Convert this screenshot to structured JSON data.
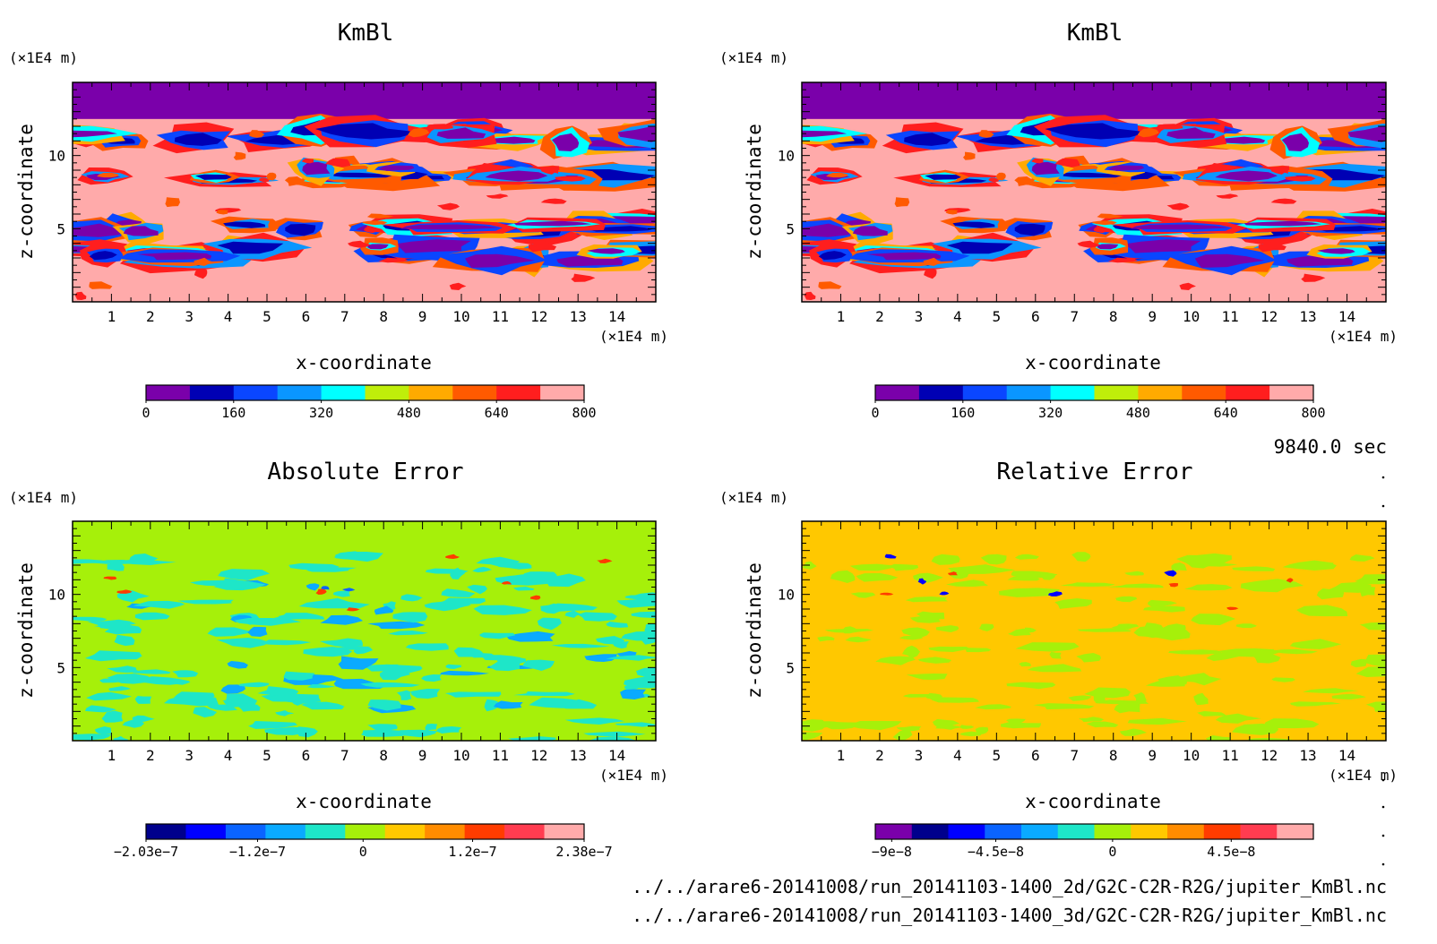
{
  "panels": [
    {
      "title": "KmBl",
      "xlabel": "x-coordinate",
      "ylabel": "z-coordinate",
      "xunit": "(×1E4 m)",
      "yunit": "(×1E4 m)",
      "background": "#ffaaaa",
      "cap": "#7a00aa",
      "pattern": "field",
      "colorbar": {
        "colors": [
          "#7a00aa",
          "#0000b4",
          "#0a46ff",
          "#0a96ff",
          "#00ffff",
          "#bfee0a",
          "#ffaa00",
          "#ff5a00",
          "#ff1e1e",
          "#ffaaaa"
        ],
        "labels": [
          "0",
          "160",
          "320",
          "480",
          "640",
          "800"
        ],
        "label_positions": [
          0,
          2,
          4,
          6,
          8,
          10
        ]
      }
    },
    {
      "title": "KmBl",
      "xlabel": "x-coordinate",
      "ylabel": "z-coordinate",
      "xunit": "(×1E4 m)",
      "yunit": "(×1E4 m)",
      "background": "#ffaaaa",
      "cap": "#7a00aa",
      "pattern": "field",
      "colorbar": {
        "colors": [
          "#7a00aa",
          "#0000b4",
          "#0a46ff",
          "#0a96ff",
          "#00ffff",
          "#bfee0a",
          "#ffaa00",
          "#ff5a00",
          "#ff1e1e",
          "#ffaaaa"
        ],
        "labels": [
          "0",
          "160",
          "320",
          "480",
          "640",
          "800"
        ],
        "label_positions": [
          0,
          2,
          4,
          6,
          8,
          10
        ]
      }
    },
    {
      "title": "Absolute Error",
      "xlabel": "x-coordinate",
      "ylabel": "z-coordinate",
      "xunit": "(×1E4 m)",
      "yunit": "(×1E4 m)",
      "background": "#a6f00a",
      "cap": "#a6f00a",
      "pattern": "abs",
      "colorbar": {
        "colors": [
          "#00008c",
          "#0000ff",
          "#0a64ff",
          "#0aaaff",
          "#1ee6c8",
          "#a6f00a",
          "#ffc800",
          "#ff8c00",
          "#ff3c00",
          "#ff3c50",
          "#ffaaaa"
        ],
        "labels": [
          "−2.03e−7",
          "−1.2e−7",
          "0",
          "1.2e−7",
          "2.38e−7"
        ],
        "label_positions": [
          0,
          2.8,
          5.45,
          8.2,
          11
        ]
      }
    },
    {
      "title": "Relative Error",
      "xlabel": "x-coordinate",
      "ylabel": "z-coordinate",
      "xunit": "(×1E4 m)",
      "yunit": "(×1E4 m)",
      "background": "#ffc800",
      "cap": "#ffc800",
      "pattern": "rel",
      "colorbar": {
        "colors": [
          "#7a00aa",
          "#00008c",
          "#0000ff",
          "#0a64ff",
          "#0aaaff",
          "#1ee6c8",
          "#a6f00a",
          "#ffc800",
          "#ff8c00",
          "#ff3c00",
          "#ff3c50",
          "#ffaaaa"
        ],
        "labels": [
          "−9e−8",
          "−4.5e−8",
          "0",
          "4.5e−8"
        ],
        "label_positions": [
          0.45,
          3.3,
          6.5,
          9.75
        ]
      }
    }
  ],
  "time_label": "9840.0 sec",
  "files": [
    "../../arare6-20141008/run_20141103-1400_2d/G2C-C2R-R2G/jupiter_KmBl.nc",
    "../../arare6-20141008/run_20141103-1400_3d/G2C-C2R-R2G/jupiter_KmBl.nc"
  ],
  "chart_data": [
    {
      "type": "heatmap",
      "title": "KmBl",
      "xlabel": "x-coordinate",
      "ylabel": "z-coordinate",
      "xunit": "(×1E4 m)",
      "yunit": "(×1E4 m)",
      "xlim": [
        0,
        15
      ],
      "ylim": [
        0,
        15
      ],
      "xticks": [
        1,
        2,
        3,
        4,
        5,
        6,
        7,
        8,
        9,
        10,
        11,
        12,
        13,
        14
      ],
      "yticks": [
        5,
        10
      ],
      "colorbar_labels": [
        "0",
        "160",
        "320",
        "480",
        "640",
        "800"
      ],
      "clim": [
        0,
        800
      ],
      "field_top": 12.5
    },
    {
      "type": "heatmap",
      "title": "KmBl",
      "xlabel": "x-coordinate",
      "ylabel": "z-coordinate",
      "xunit": "(×1E4 m)",
      "yunit": "(×1E4 m)",
      "xlim": [
        0,
        15
      ],
      "ylim": [
        0,
        15
      ],
      "xticks": [
        1,
        2,
        3,
        4,
        5,
        6,
        7,
        8,
        9,
        10,
        11,
        12,
        13,
        14
      ],
      "yticks": [
        5,
        10
      ],
      "colorbar_labels": [
        "0",
        "160",
        "320",
        "480",
        "640",
        "800"
      ],
      "clim": [
        0,
        800
      ],
      "field_top": 12.5
    },
    {
      "type": "heatmap",
      "title": "Absolute Error",
      "xlabel": "x-coordinate",
      "ylabel": "z-coordinate",
      "xunit": "(×1E4 m)",
      "yunit": "(×1E4 m)",
      "xlim": [
        0,
        15
      ],
      "ylim": [
        0,
        15
      ],
      "xticks": [
        1,
        2,
        3,
        4,
        5,
        6,
        7,
        8,
        9,
        10,
        11,
        12,
        13,
        14
      ],
      "yticks": [
        5,
        10
      ],
      "colorbar_labels": [
        "−2.03e−7",
        "−1.2e−7",
        "0",
        "1.2e−7",
        "2.38e−7"
      ],
      "clim": [
        -2.03e-07,
        2.38e-07
      ]
    },
    {
      "type": "heatmap",
      "title": "Relative Error",
      "xlabel": "x-coordinate",
      "ylabel": "z-coordinate",
      "xunit": "(×1E4 m)",
      "yunit": "(×1E4 m)",
      "xlim": [
        0,
        15
      ],
      "ylim": [
        0,
        15
      ],
      "xticks": [
        1,
        2,
        3,
        4,
        5,
        6,
        7,
        8,
        9,
        10,
        11,
        12,
        13,
        14
      ],
      "yticks": [
        5,
        10
      ],
      "colorbar_labels": [
        "−9e−8",
        "−4.5e−8",
        "0",
        "4.5e−8"
      ]
    }
  ]
}
